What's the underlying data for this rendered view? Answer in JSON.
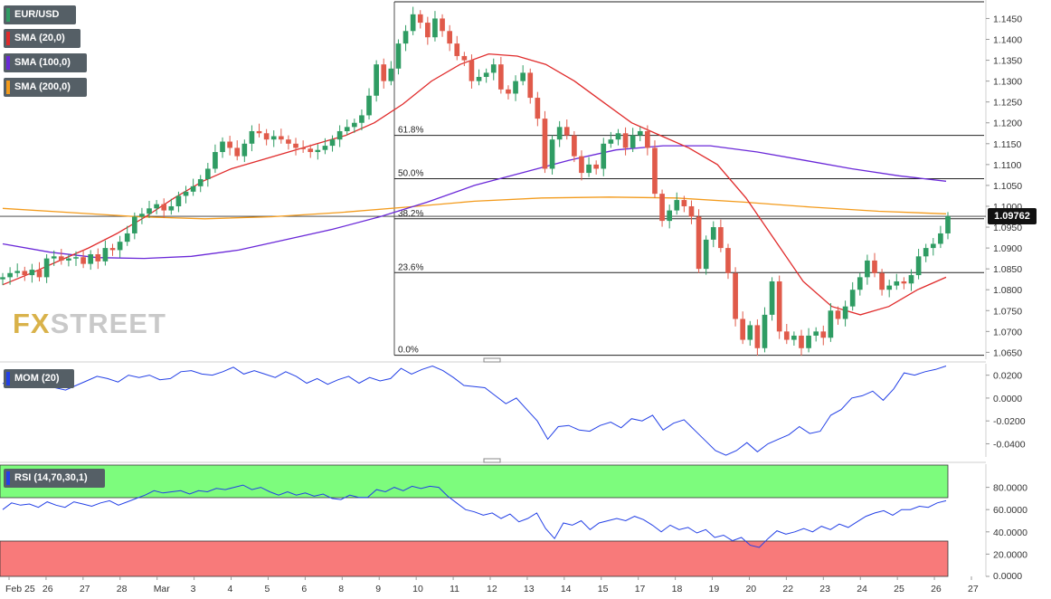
{
  "legend": {
    "symbol": "EUR/USD",
    "sma20": "SMA (20,0)",
    "sma100": "SMA (100,0)",
    "sma200": "SMA (200,0)",
    "mom": "MOM (20)",
    "rsi": "RSI (14,70,30,1)"
  },
  "watermark": {
    "a": "FX",
    "b": "STREET"
  },
  "current_price_label": "1.09762",
  "colors": {
    "up": "#2f9c63",
    "down": "#e05a4a",
    "sma20": "#e02b2b",
    "sma100": "#6a28d8",
    "sma200": "#f39b1c",
    "indicator": "#2340e6",
    "rsi_high_zone": "#7dfc7d",
    "rsi_low_zone": "#f87a7a"
  },
  "chart_data": [
    {
      "type": "candlestick",
      "name": "EUR/USD",
      "x_tick_labels": [
        "Feb 25",
        "26",
        "27",
        "28",
        "Mar",
        "3",
        "4",
        "5",
        "6",
        "8",
        "9",
        "10",
        "11",
        "12",
        "13",
        "14",
        "15",
        "17",
        "18",
        "19",
        "20",
        "22",
        "23",
        "24",
        "25",
        "26",
        "27"
      ],
      "y_tick_labels": [
        "1.0650",
        "1.0700",
        "1.0750",
        "1.0800",
        "1.0850",
        "1.0900",
        "1.0950",
        "1.1000",
        "1.1050",
        "1.1100",
        "1.1150",
        "1.1200",
        "1.1250",
        "1.1300",
        "1.1350",
        "1.1400",
        "1.1450"
      ],
      "ylim": [
        1.064,
        1.149
      ],
      "fibonacci": [
        {
          "label": "61.8%",
          "value": 1.117
        },
        {
          "label": "50.0%",
          "value": 1.1066
        },
        {
          "label": "38.2%",
          "value": 1.097
        },
        {
          "label": "23.6%",
          "value": 1.0841
        },
        {
          "label": "0.0%",
          "value": 1.0643
        }
      ],
      "fib_top_value": 1.149,
      "current_price_value": 1.0976,
      "closes": [
        1.083,
        1.084,
        1.0845,
        1.0835,
        1.0848,
        1.083,
        1.0875,
        1.088,
        1.087,
        1.0875,
        1.0878,
        1.0862,
        1.0885,
        1.0868,
        1.09,
        1.0895,
        1.0915,
        1.0935,
        1.0975,
        1.0982,
        1.0995,
        1.1005,
        1.099,
        1.1,
        1.1025,
        1.1035,
        1.1048,
        1.1065,
        1.109,
        1.113,
        1.1155,
        1.114,
        1.112,
        1.115,
        1.118,
        1.1175,
        1.116,
        1.1168,
        1.116,
        1.115,
        1.114,
        1.1138,
        1.113,
        1.1135,
        1.1145,
        1.116,
        1.118,
        1.119,
        1.12,
        1.1218,
        1.1265,
        1.134,
        1.13,
        1.133,
        1.139,
        1.142,
        1.146,
        1.144,
        1.1405,
        1.145,
        1.142,
        1.139,
        1.136,
        1.135,
        1.13,
        1.131,
        1.132,
        1.134,
        1.128,
        1.127,
        1.13,
        1.132,
        1.126,
        1.121,
        1.109,
        1.116,
        1.119,
        1.117,
        1.112,
        1.108,
        1.11,
        1.109,
        1.115,
        1.116,
        1.1175,
        1.114,
        1.117,
        1.118,
        1.114,
        1.103,
        1.0965,
        1.099,
        1.1015,
        1.1,
        1.0975,
        1.085,
        1.092,
        1.095,
        1.09,
        1.084,
        1.073,
        1.068,
        1.0715,
        1.066,
        1.074,
        1.082,
        1.07,
        1.068,
        1.069,
        1.066,
        1.069,
        1.07,
        1.0685,
        1.075,
        1.073,
        1.076,
        1.08,
        1.083,
        1.087,
        1.084,
        1.08,
        1.081,
        1.082,
        1.0815,
        1.0835,
        1.088,
        1.09,
        1.091,
        1.0935,
        1.0976
      ],
      "opens_note": "",
      "sma20": [
        1.0812,
        1.084,
        1.087,
        1.09,
        1.0935,
        1.0975,
        1.102,
        1.106,
        1.109,
        1.111,
        1.113,
        1.115,
        1.117,
        1.12,
        1.1245,
        1.13,
        1.134,
        1.1365,
        1.136,
        1.134,
        1.13,
        1.125,
        1.12,
        1.117,
        1.114,
        1.11,
        1.102,
        1.092,
        1.082,
        1.076,
        1.074,
        1.076,
        1.08,
        1.083
      ],
      "sma100": [
        1.091,
        1.089,
        1.0877,
        1.0875,
        1.088,
        1.0895,
        1.092,
        1.0945,
        1.0975,
        1.101,
        1.105,
        1.108,
        1.111,
        1.1135,
        1.1145,
        1.1145,
        1.113,
        1.111,
        1.109,
        1.1073,
        1.106
      ],
      "sma200": [
        1.0995,
        1.0985,
        1.0975,
        1.097,
        1.0975,
        1.0985,
        1.0998,
        1.1012,
        1.102,
        1.1022,
        1.102,
        1.101,
        1.0998,
        1.0988,
        1.0982
      ]
    },
    {
      "type": "line",
      "name": "MOM (20)",
      "y_tick_labels": [
        "0.0200",
        "0.0000",
        "-0.0200",
        "-0.0400"
      ],
      "ylim": [
        -0.0515,
        0.03
      ],
      "values": [
        0.013,
        0.01,
        0.012,
        0.0095,
        0.0105,
        0.009,
        0.007,
        0.011,
        0.015,
        0.019,
        0.017,
        0.014,
        0.02,
        0.018,
        0.02,
        0.016,
        0.017,
        0.023,
        0.024,
        0.021,
        0.02,
        0.023,
        0.027,
        0.021,
        0.024,
        0.021,
        0.018,
        0.023,
        0.019,
        0.013,
        0.017,
        0.012,
        0.016,
        0.019,
        0.013,
        0.018,
        0.015,
        0.017,
        0.026,
        0.021,
        0.025,
        0.028,
        0.024,
        0.018,
        0.011,
        0.01,
        0.009,
        0.002,
        -0.005,
        0.0,
        -0.01,
        -0.02,
        -0.036,
        -0.025,
        -0.024,
        -0.028,
        -0.029,
        -0.024,
        -0.021,
        -0.026,
        -0.018,
        -0.02,
        -0.015,
        -0.028,
        -0.022,
        -0.019,
        -0.028,
        -0.037,
        -0.046,
        -0.05,
        -0.046,
        -0.039,
        -0.047,
        -0.04,
        -0.036,
        -0.032,
        -0.025,
        -0.031,
        -0.029,
        -0.015,
        -0.01,
        0.0,
        0.002,
        0.006,
        -0.002,
        0.008,
        0.022,
        0.02,
        0.023,
        0.025,
        0.028
      ]
    },
    {
      "type": "line",
      "name": "RSI (14,70,30,1)",
      "y_tick_labels": [
        "80.0000",
        "60.0000",
        "40.0000",
        "20.0000",
        "0.0000"
      ],
      "ylim": [
        0,
        100
      ],
      "zones": {
        "upper": 70,
        "lower": 30
      },
      "values": [
        60,
        66,
        64,
        65,
        62,
        67,
        64,
        62,
        67,
        65,
        63,
        66,
        68,
        64,
        67,
        70,
        73,
        77,
        75,
        76,
        77,
        74,
        77,
        76,
        79,
        78,
        80,
        82,
        78,
        80,
        76,
        73,
        76,
        73,
        75,
        72,
        74,
        70,
        69,
        73,
        71,
        71,
        78,
        76,
        80,
        77,
        81,
        79,
        81,
        80,
        72,
        66,
        60,
        58,
        55,
        57,
        52,
        56,
        49,
        52,
        57,
        43,
        34,
        48,
        46,
        50,
        42,
        48,
        50,
        52,
        50,
        54,
        51,
        46,
        40,
        46,
        42,
        44,
        39,
        42,
        35,
        37,
        32,
        35,
        28,
        26,
        34,
        41,
        38,
        40,
        43,
        40,
        45,
        42,
        47,
        44,
        49,
        54,
        57,
        59,
        55,
        60,
        60,
        63,
        62,
        66,
        68
      ]
    }
  ]
}
